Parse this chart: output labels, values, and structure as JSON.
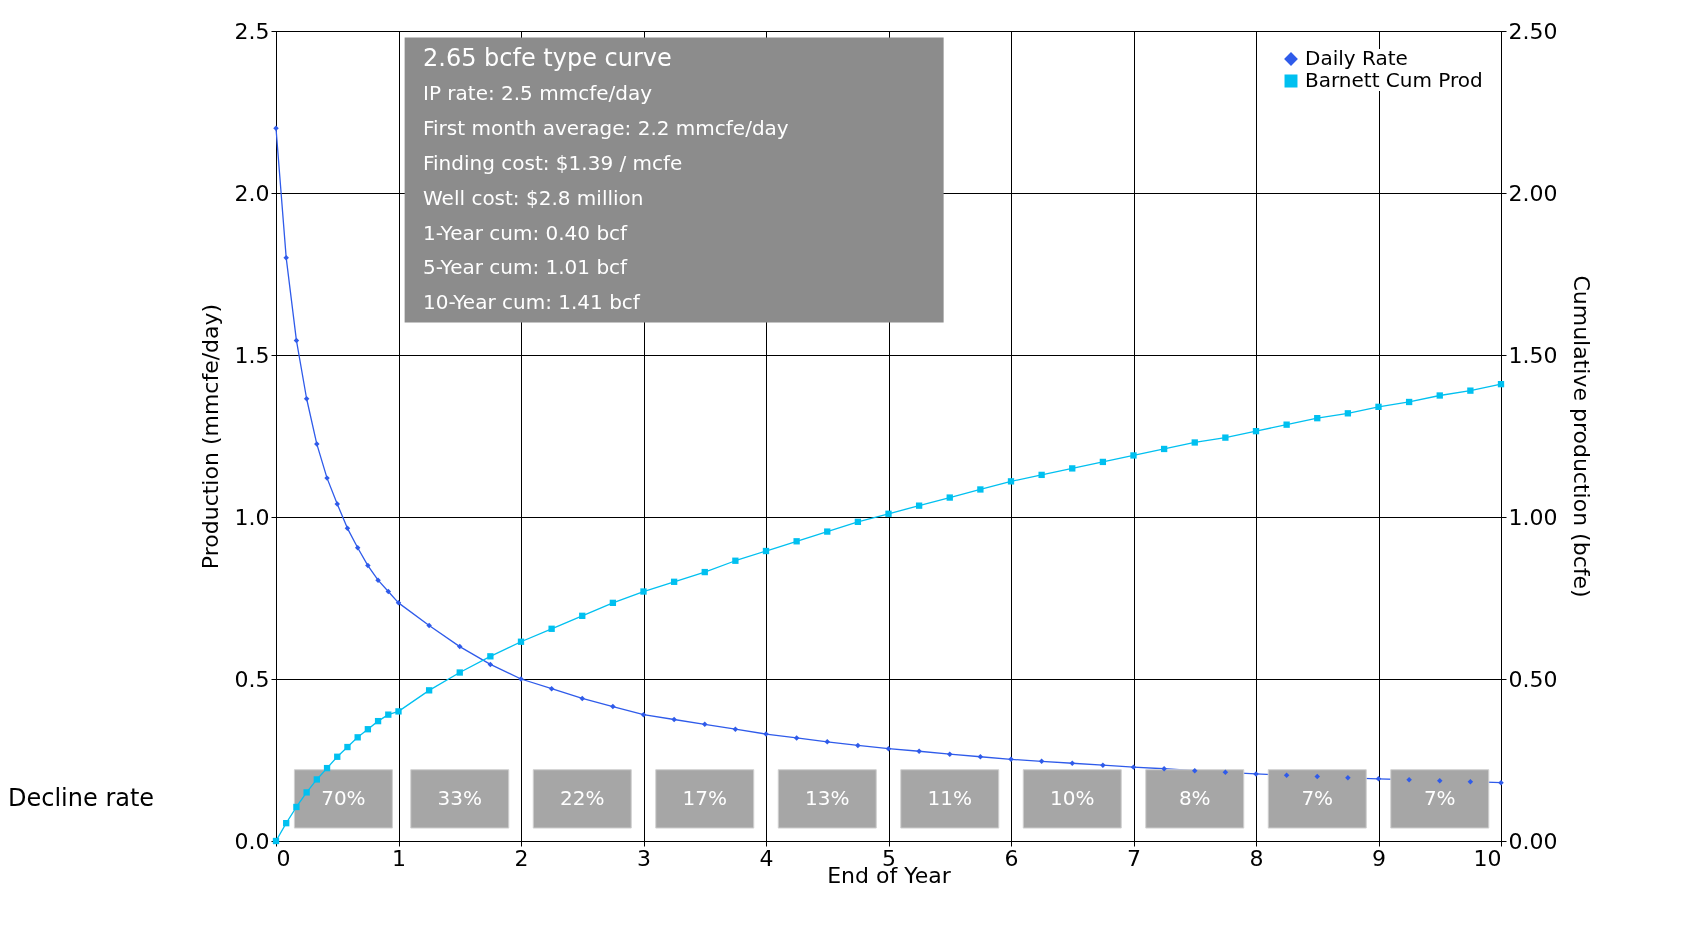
{
  "chart_data": {
    "type": "line",
    "xlabel": "End of Year",
    "ylabel": "Production (mmcfe/day)",
    "y2label": "Cumulative production (bcfe)",
    "xlim": [
      0,
      10
    ],
    "xticks": [
      0,
      1,
      2,
      3,
      4,
      5,
      6,
      7,
      8,
      9,
      10
    ],
    "ylim": [
      0,
      2.5
    ],
    "yticks": [
      {
        "value": 0,
        "label": "0.0"
      },
      {
        "value": 0.5,
        "label": "0.5"
      },
      {
        "value": 1,
        "label": "1.0"
      },
      {
        "value": 1.5,
        "label": "1.5"
      },
      {
        "value": 2,
        "label": "2.0"
      },
      {
        "value": 2.5,
        "label": "2.5"
      }
    ],
    "y2lim": [
      0,
      2.5
    ],
    "y2ticks": [
      {
        "value": 0,
        "label": "0.00"
      },
      {
        "value": 0.5,
        "label": "0.50"
      },
      {
        "value": 1,
        "label": "1.00"
      },
      {
        "value": 1.5,
        "label": "1.50"
      },
      {
        "value": 2,
        "label": "2.00"
      },
      {
        "value": 2.5,
        "label": "2.50"
      }
    ],
    "grid": true,
    "legend": "top right",
    "series": [
      {
        "name": "Daily Rate",
        "color": "#2f5bea",
        "marker": "diamond",
        "x": [
          0,
          0.0833,
          0.1667,
          0.25,
          0.3333,
          0.4167,
          0.5,
          0.5833,
          0.6667,
          0.75,
          0.8333,
          0.9167,
          1,
          1.25,
          1.5,
          1.75,
          2,
          2.25,
          2.5,
          2.75,
          3,
          3.25,
          3.5,
          3.75,
          4,
          4.25,
          4.5,
          4.75,
          5,
          5.25,
          5.5,
          5.75,
          6,
          6.25,
          6.5,
          6.75,
          7,
          7.25,
          7.5,
          7.75,
          8,
          8.25,
          8.5,
          8.75,
          9,
          9.25,
          9.5,
          9.75,
          10
        ],
        "values": [
          2.2,
          1.8,
          1.545,
          1.365,
          1.225,
          1.12,
          1.04,
          0.965,
          0.905,
          0.85,
          0.805,
          0.77,
          0.735,
          0.665,
          0.6,
          0.545,
          0.5,
          0.47,
          0.44,
          0.415,
          0.39,
          0.375,
          0.36,
          0.345,
          0.33,
          0.318,
          0.306,
          0.295,
          0.285,
          0.277,
          0.268,
          0.26,
          0.252,
          0.246,
          0.24,
          0.234,
          0.228,
          0.223,
          0.217,
          0.212,
          0.207,
          0.203,
          0.199,
          0.195,
          0.192,
          0.189,
          0.186,
          0.183,
          0.18
        ]
      },
      {
        "name": "Barnett Cum Prod",
        "color": "#00c0f0",
        "marker": "square",
        "axis": "y2",
        "x": [
          0,
          0.0833,
          0.1667,
          0.25,
          0.3333,
          0.4167,
          0.5,
          0.5833,
          0.6667,
          0.75,
          0.8333,
          0.9167,
          1,
          1.25,
          1.5,
          1.75,
          2,
          2.25,
          2.5,
          2.75,
          3,
          3.25,
          3.5,
          3.75,
          4,
          4.25,
          4.5,
          4.75,
          5,
          5.25,
          5.5,
          5.75,
          6,
          6.25,
          6.5,
          6.75,
          7,
          7.25,
          7.5,
          7.75,
          8,
          8.25,
          8.5,
          8.75,
          9,
          9.25,
          9.5,
          9.75,
          10
        ],
        "values": [
          0,
          0.055,
          0.105,
          0.15,
          0.19,
          0.225,
          0.26,
          0.29,
          0.32,
          0.345,
          0.37,
          0.39,
          0.4,
          0.465,
          0.52,
          0.57,
          0.615,
          0.655,
          0.695,
          0.735,
          0.77,
          0.8,
          0.83,
          0.865,
          0.895,
          0.925,
          0.955,
          0.985,
          1.01,
          1.035,
          1.06,
          1.085,
          1.11,
          1.13,
          1.15,
          1.17,
          1.19,
          1.21,
          1.23,
          1.245,
          1.265,
          1.285,
          1.305,
          1.32,
          1.34,
          1.355,
          1.375,
          1.39,
          1.41
        ]
      }
    ],
    "annotations": [
      "2.65 bcfe type curve",
      "IP rate: 2.5 mmcfe/day",
      "First month average: 2.2 mmcfe/day",
      "Finding cost: $1.39 / mcfe",
      "Well cost: $2.8 million",
      "1-Year cum: 0.40 bcf",
      "5-Year cum: 1.01 bcf",
      "10-Year cum: 1.41 bcf",
      "Decline rate"
    ],
    "bands": [
      {
        "axis": "x",
        "from": 0.15,
        "to": 0.95,
        "label": "70%",
        "color": "#a6a6a6"
      },
      {
        "axis": "x",
        "from": 1.1,
        "to": 1.9,
        "label": "33%",
        "color": "#a6a6a6"
      },
      {
        "axis": "x",
        "from": 2.1,
        "to": 2.9,
        "label": "22%",
        "color": "#a6a6a6"
      },
      {
        "axis": "x",
        "from": 3.1,
        "to": 3.9,
        "label": "17%",
        "color": "#a6a6a6"
      },
      {
        "axis": "x",
        "from": 4.1,
        "to": 4.9,
        "label": "13%",
        "color": "#a6a6a6"
      },
      {
        "axis": "x",
        "from": 5.1,
        "to": 5.9,
        "label": "11%",
        "color": "#a6a6a6"
      },
      {
        "axis": "x",
        "from": 6.1,
        "to": 6.9,
        "label": "10%",
        "color": "#a6a6a6"
      },
      {
        "axis": "x",
        "from": 7.1,
        "to": 7.9,
        "label": "8%",
        "color": "#a6a6a6"
      },
      {
        "axis": "x",
        "from": 8.1,
        "to": 8.9,
        "label": "7%",
        "color": "#a6a6a6"
      },
      {
        "axis": "x",
        "from": 9.1,
        "to": 9.9,
        "label": "7%",
        "color": "#a6a6a6"
      }
    ]
  }
}
